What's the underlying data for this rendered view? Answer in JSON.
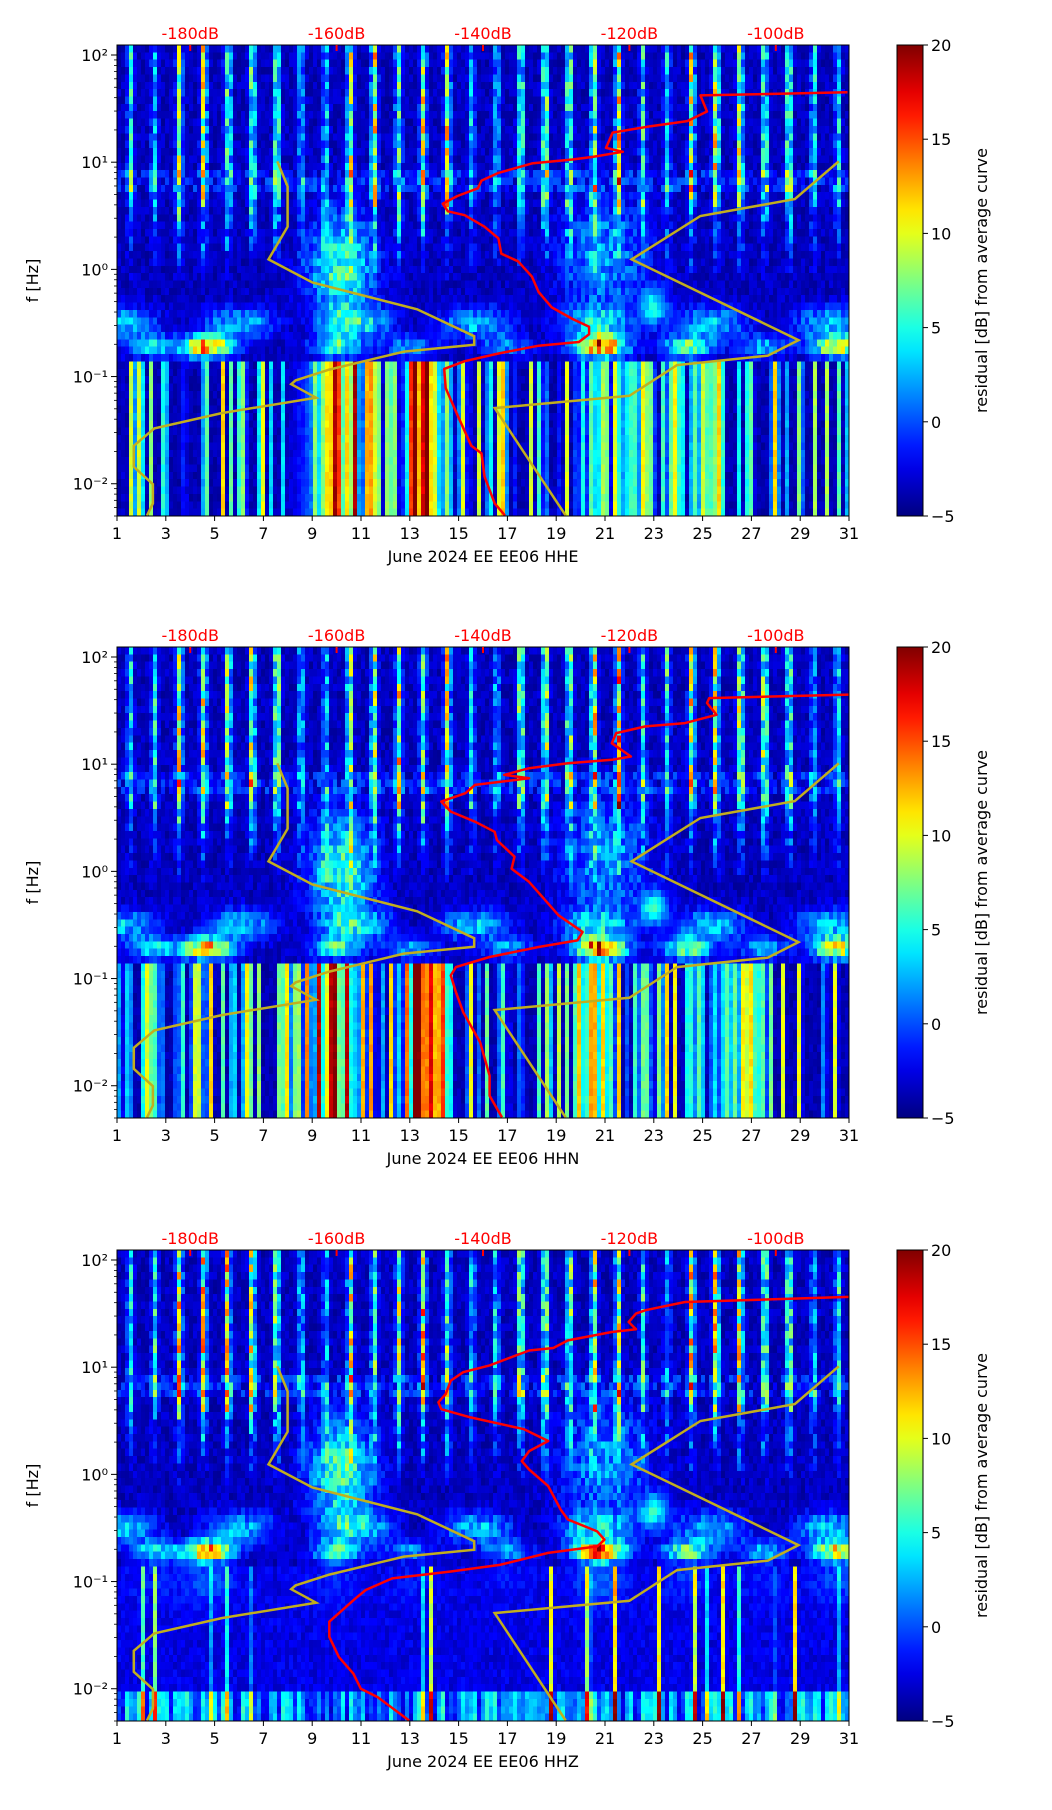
{
  "chart_data": [
    {
      "type": "heatmap",
      "xlabel": "June 2024 EE EE06  HHE",
      "ylabel": "f [Hz]",
      "red_curve_db": [
        [
          -90.2,
          44.9
        ],
        [
          -110.3,
          42
        ],
        [
          -109.4,
          29.7
        ],
        [
          -112.1,
          24.2
        ],
        [
          -117.6,
          21.4
        ],
        [
          -122.3,
          18.9
        ],
        [
          -123.2,
          13.6
        ],
        [
          -120.9,
          12.5
        ],
        [
          -125.0,
          11.2
        ],
        [
          -127.8,
          10.6
        ],
        [
          -133.3,
          9.75
        ],
        [
          -136.1,
          8.6
        ],
        [
          -137.9,
          7.94
        ],
        [
          -140.2,
          6.73
        ],
        [
          -140.7,
          5.71
        ],
        [
          -143.5,
          4.84
        ],
        [
          -145.5,
          4.1
        ],
        [
          -144.8,
          3.48
        ],
        [
          -142.5,
          3.2
        ],
        [
          -139.8,
          2.5
        ],
        [
          -137.9,
          1.95
        ],
        [
          -137.5,
          1.4
        ],
        [
          -135.2,
          1.19
        ],
        [
          -133.3,
          0.855
        ],
        [
          -132.4,
          0.615
        ],
        [
          -130.6,
          0.442
        ],
        [
          -127.8,
          0.345
        ],
        [
          -125.5,
          0.292
        ],
        [
          -125.5,
          0.248
        ],
        [
          -126.9,
          0.21
        ],
        [
          -132.4,
          0.194
        ],
        [
          -137.9,
          0.164
        ],
        [
          -142.5,
          0.139
        ],
        [
          -145.3,
          0.118
        ],
        [
          -145.1,
          0.0781
        ],
        [
          -143.5,
          0.0439
        ],
        [
          -141.6,
          0.0226
        ],
        [
          -140.2,
          0.0192
        ],
        [
          -139.8,
          0.0117
        ],
        [
          -138.4,
          0.00656
        ],
        [
          -137.0,
          0.00505
        ]
      ]
    },
    {
      "type": "heatmap",
      "xlabel": "June 2024 EE EE06  HHN",
      "ylabel": "f [Hz]",
      "red_curve_db": [
        [
          -90.0,
          44.6
        ],
        [
          -109.1,
          41.4
        ],
        [
          -109.4,
          37.2
        ],
        [
          -108.1,
          28.9
        ],
        [
          -112.4,
          24.2
        ],
        [
          -117.8,
          22.5
        ],
        [
          -121.8,
          19.5
        ],
        [
          -122.4,
          15.7
        ],
        [
          -119.8,
          11.8
        ],
        [
          -122.4,
          11.0
        ],
        [
          -128.4,
          10.2
        ],
        [
          -133.7,
          9.18
        ],
        [
          -137.1,
          7.95
        ],
        [
          -133.7,
          7.39
        ],
        [
          -141.1,
          6.41
        ],
        [
          -142.4,
          5.36
        ],
        [
          -145.7,
          4.48
        ],
        [
          -144.4,
          3.61
        ],
        [
          -141.1,
          2.91
        ],
        [
          -138.4,
          2.34
        ],
        [
          -138.1,
          1.96
        ],
        [
          -135.7,
          1.37
        ],
        [
          -136.1,
          1.06
        ],
        [
          -133.7,
          0.798
        ],
        [
          -131.7,
          0.557
        ],
        [
          -129.7,
          0.39
        ],
        [
          -126.4,
          0.272
        ],
        [
          -127.1,
          0.227
        ],
        [
          -132.4,
          0.197
        ],
        [
          -139.1,
          0.159
        ],
        [
          -143.7,
          0.128
        ],
        [
          -144.4,
          0.107
        ],
        [
          -143.7,
          0.0747
        ],
        [
          -142.7,
          0.0485
        ],
        [
          -140.4,
          0.0255
        ],
        [
          -139.1,
          0.0124
        ],
        [
          -139.1,
          0.00807
        ],
        [
          -137.4,
          0.00506
        ]
      ]
    },
    {
      "type": "heatmap",
      "xlabel": "June 2024 EE EE06  HHZ",
      "ylabel": "f [Hz]",
      "red_curve_db": [
        [
          -90.0,
          45.3
        ],
        [
          -112.4,
          40.6
        ],
        [
          -117.8,
          34.0
        ],
        [
          -119.1,
          31.6
        ],
        [
          -120.1,
          26.4
        ],
        [
          -119.1,
          22.6
        ],
        [
          -122.4,
          21.3
        ],
        [
          -128.4,
          17.8
        ],
        [
          -130.4,
          15.1
        ],
        [
          -133.7,
          14.3
        ],
        [
          -139.1,
          10.4
        ],
        [
          -142.7,
          8.98
        ],
        [
          -144.4,
          7.5
        ],
        [
          -145.1,
          5.62
        ],
        [
          -146.1,
          4.7
        ],
        [
          -145.7,
          4.06
        ],
        [
          -141.7,
          3.4
        ],
        [
          -134.4,
          2.64
        ],
        [
          -131.1,
          2.05
        ],
        [
          -133.7,
          1.65
        ],
        [
          -134.7,
          1.33
        ],
        [
          -133.7,
          1.11
        ],
        [
          -131.1,
          0.778
        ],
        [
          -129.4,
          0.47
        ],
        [
          -128.4,
          0.379
        ],
        [
          -124.4,
          0.294
        ],
        [
          -123.4,
          0.246
        ],
        [
          -124.4,
          0.213
        ],
        [
          -131.1,
          0.185
        ],
        [
          -137.7,
          0.143
        ],
        [
          -144.4,
          0.124
        ],
        [
          -152.4,
          0.107
        ],
        [
          -156.0,
          0.0835
        ],
        [
          -157.4,
          0.0698
        ],
        [
          -161.0,
          0.0422
        ],
        [
          -161.0,
          0.0305
        ],
        [
          -159.7,
          0.0198
        ],
        [
          -157.7,
          0.0138
        ],
        [
          -156.7,
          0.01
        ],
        [
          -154.4,
          0.00835
        ],
        [
          -150.1,
          0.00505
        ]
      ]
    }
  ],
  "shared": {
    "xlim": [
      1,
      31
    ],
    "ylim": [
      0.005,
      124
    ],
    "yscale": "log",
    "xticks": [
      1,
      3,
      5,
      7,
      9,
      11,
      13,
      15,
      17,
      19,
      21,
      23,
      25,
      27,
      29,
      31
    ],
    "xtick_labels": [
      "1",
      "3",
      "5",
      "7",
      "9",
      "11",
      "13",
      "15",
      "17",
      "19",
      "21",
      "23",
      "25",
      "27",
      "29",
      "31"
    ],
    "yticks": [
      0.01,
      0.1,
      1,
      10,
      100
    ],
    "ytick_labels": [
      "10⁻²",
      "10⁻¹",
      "10⁰",
      "10¹",
      "10²"
    ],
    "top_axis_db_ticks": [
      -180,
      -160,
      -140,
      -120,
      -100
    ],
    "top_axis_labels": [
      "-180dB",
      "-160dB",
      "-140dB",
      "-120dB",
      "-100dB"
    ],
    "top_axis_mapping": {
      "db_at_day4": -180,
      "db_per_day": 3.3333
    },
    "nlnm_db": [
      [
        -168.1,
        10.2
      ],
      [
        -166.7,
        5.94
      ],
      [
        -166.7,
        2.5
      ],
      [
        -169.3,
        1.24
      ],
      [
        -163.3,
        0.755
      ],
      [
        -149.0,
        0.424
      ],
      [
        -141.2,
        0.238
      ],
      [
        -141.2,
        0.198
      ],
      [
        -150.8,
        0.171
      ],
      [
        -161.0,
        0.116
      ],
      [
        -165.6,
        0.092
      ],
      [
        -166.2,
        0.0848
      ],
      [
        -162.8,
        0.0635
      ],
      [
        -175.7,
        0.0456
      ],
      [
        -184.9,
        0.0328
      ],
      [
        -187.7,
        0.0226
      ],
      [
        -187.7,
        0.0144
      ],
      [
        -185.1,
        0.0099
      ],
      [
        -185.1,
        0.00656
      ],
      [
        -185.9,
        0.00505
      ]
    ],
    "nhnm_db": [
      [
        -91.4,
        10.2
      ],
      [
        -97.4,
        4.53
      ],
      [
        -110.3,
        3.15
      ],
      [
        -119.7,
        1.24
      ],
      [
        -96.9,
        0.219
      ],
      [
        -101.1,
        0.157
      ],
      [
        -113.5,
        0.128
      ],
      [
        -120.0,
        0.0662
      ],
      [
        -138.4,
        0.0508
      ],
      [
        -128.7,
        0.00505
      ]
    ],
    "colors": {
      "avg_curve": "#ff0000",
      "noise_models": "#c2ae1e",
      "top_labels": "#ff0000"
    },
    "colorbar": {
      "label": "residual [dB] from average curve",
      "colormap": "jet",
      "vmin": -5,
      "vmax": 20,
      "ticks": [
        -5,
        0,
        5,
        10,
        15,
        20
      ],
      "tick_labels": [
        "−5",
        "0",
        "5",
        "10",
        "15",
        "20"
      ]
    }
  }
}
